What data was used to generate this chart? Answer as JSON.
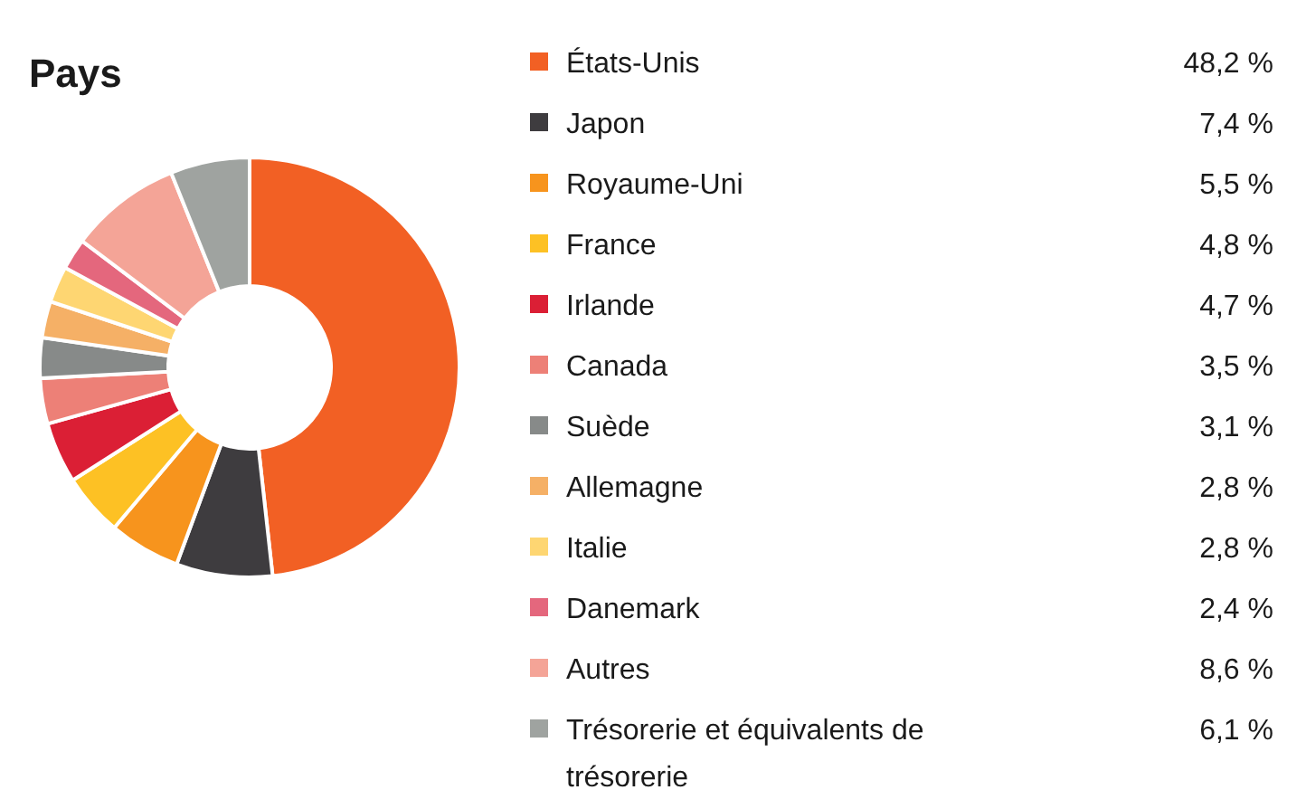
{
  "chart_data": {
    "type": "donut",
    "title": "Pays",
    "legend": "right",
    "categories": [
      "États-Unis",
      "Japon",
      "Royaume-Uni",
      "France",
      "Irlande",
      "Canada",
      "Suède",
      "Allemagne",
      "Italie",
      "Danemark",
      "Autres",
      "Trésorerie et équivalents de trésorerie"
    ],
    "values": [
      48.2,
      7.4,
      5.5,
      4.8,
      4.7,
      3.5,
      3.1,
      2.8,
      2.8,
      2.4,
      8.6,
      6.1
    ],
    "value_labels": [
      "48,2 %",
      "7,4 %",
      "5,5 %",
      "4,8 %",
      "4,7 %",
      "3,5 %",
      "3,1 %",
      "2,8 %",
      "2,8 %",
      "2,4 %",
      "8,6 %",
      "6,1 %"
    ],
    "colors": [
      "#f26024",
      "#3e3c3f",
      "#f7941d",
      "#fdc124",
      "#db1f35",
      "#ed8077",
      "#878a89",
      "#f5b066",
      "#fed672",
      "#e4677d",
      "#f4a497",
      "#9fa3a0"
    ]
  }
}
